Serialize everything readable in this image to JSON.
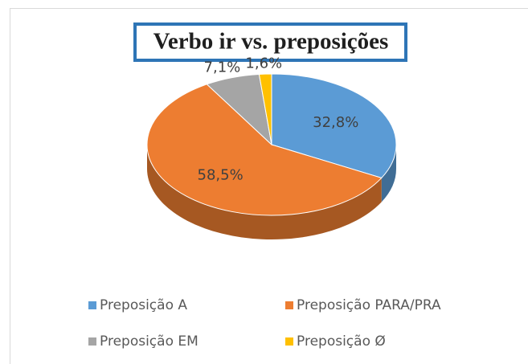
{
  "chart_data": {
    "type": "pie3d",
    "title": "Verbo ir vs. preposições",
    "categories": [
      "Preposição A",
      "Preposição PARA/PRA",
      "Preposição EM",
      "Preposição Ø"
    ],
    "values": [
      32.8,
      58.5,
      7.1,
      1.6
    ],
    "value_labels": [
      "32,8%",
      "58,5%",
      "7,1%",
      "1,6%"
    ],
    "colors": [
      "#5b9bd5",
      "#ed7d31",
      "#a5a5a5",
      "#ffc000"
    ],
    "legend": "bottom"
  }
}
